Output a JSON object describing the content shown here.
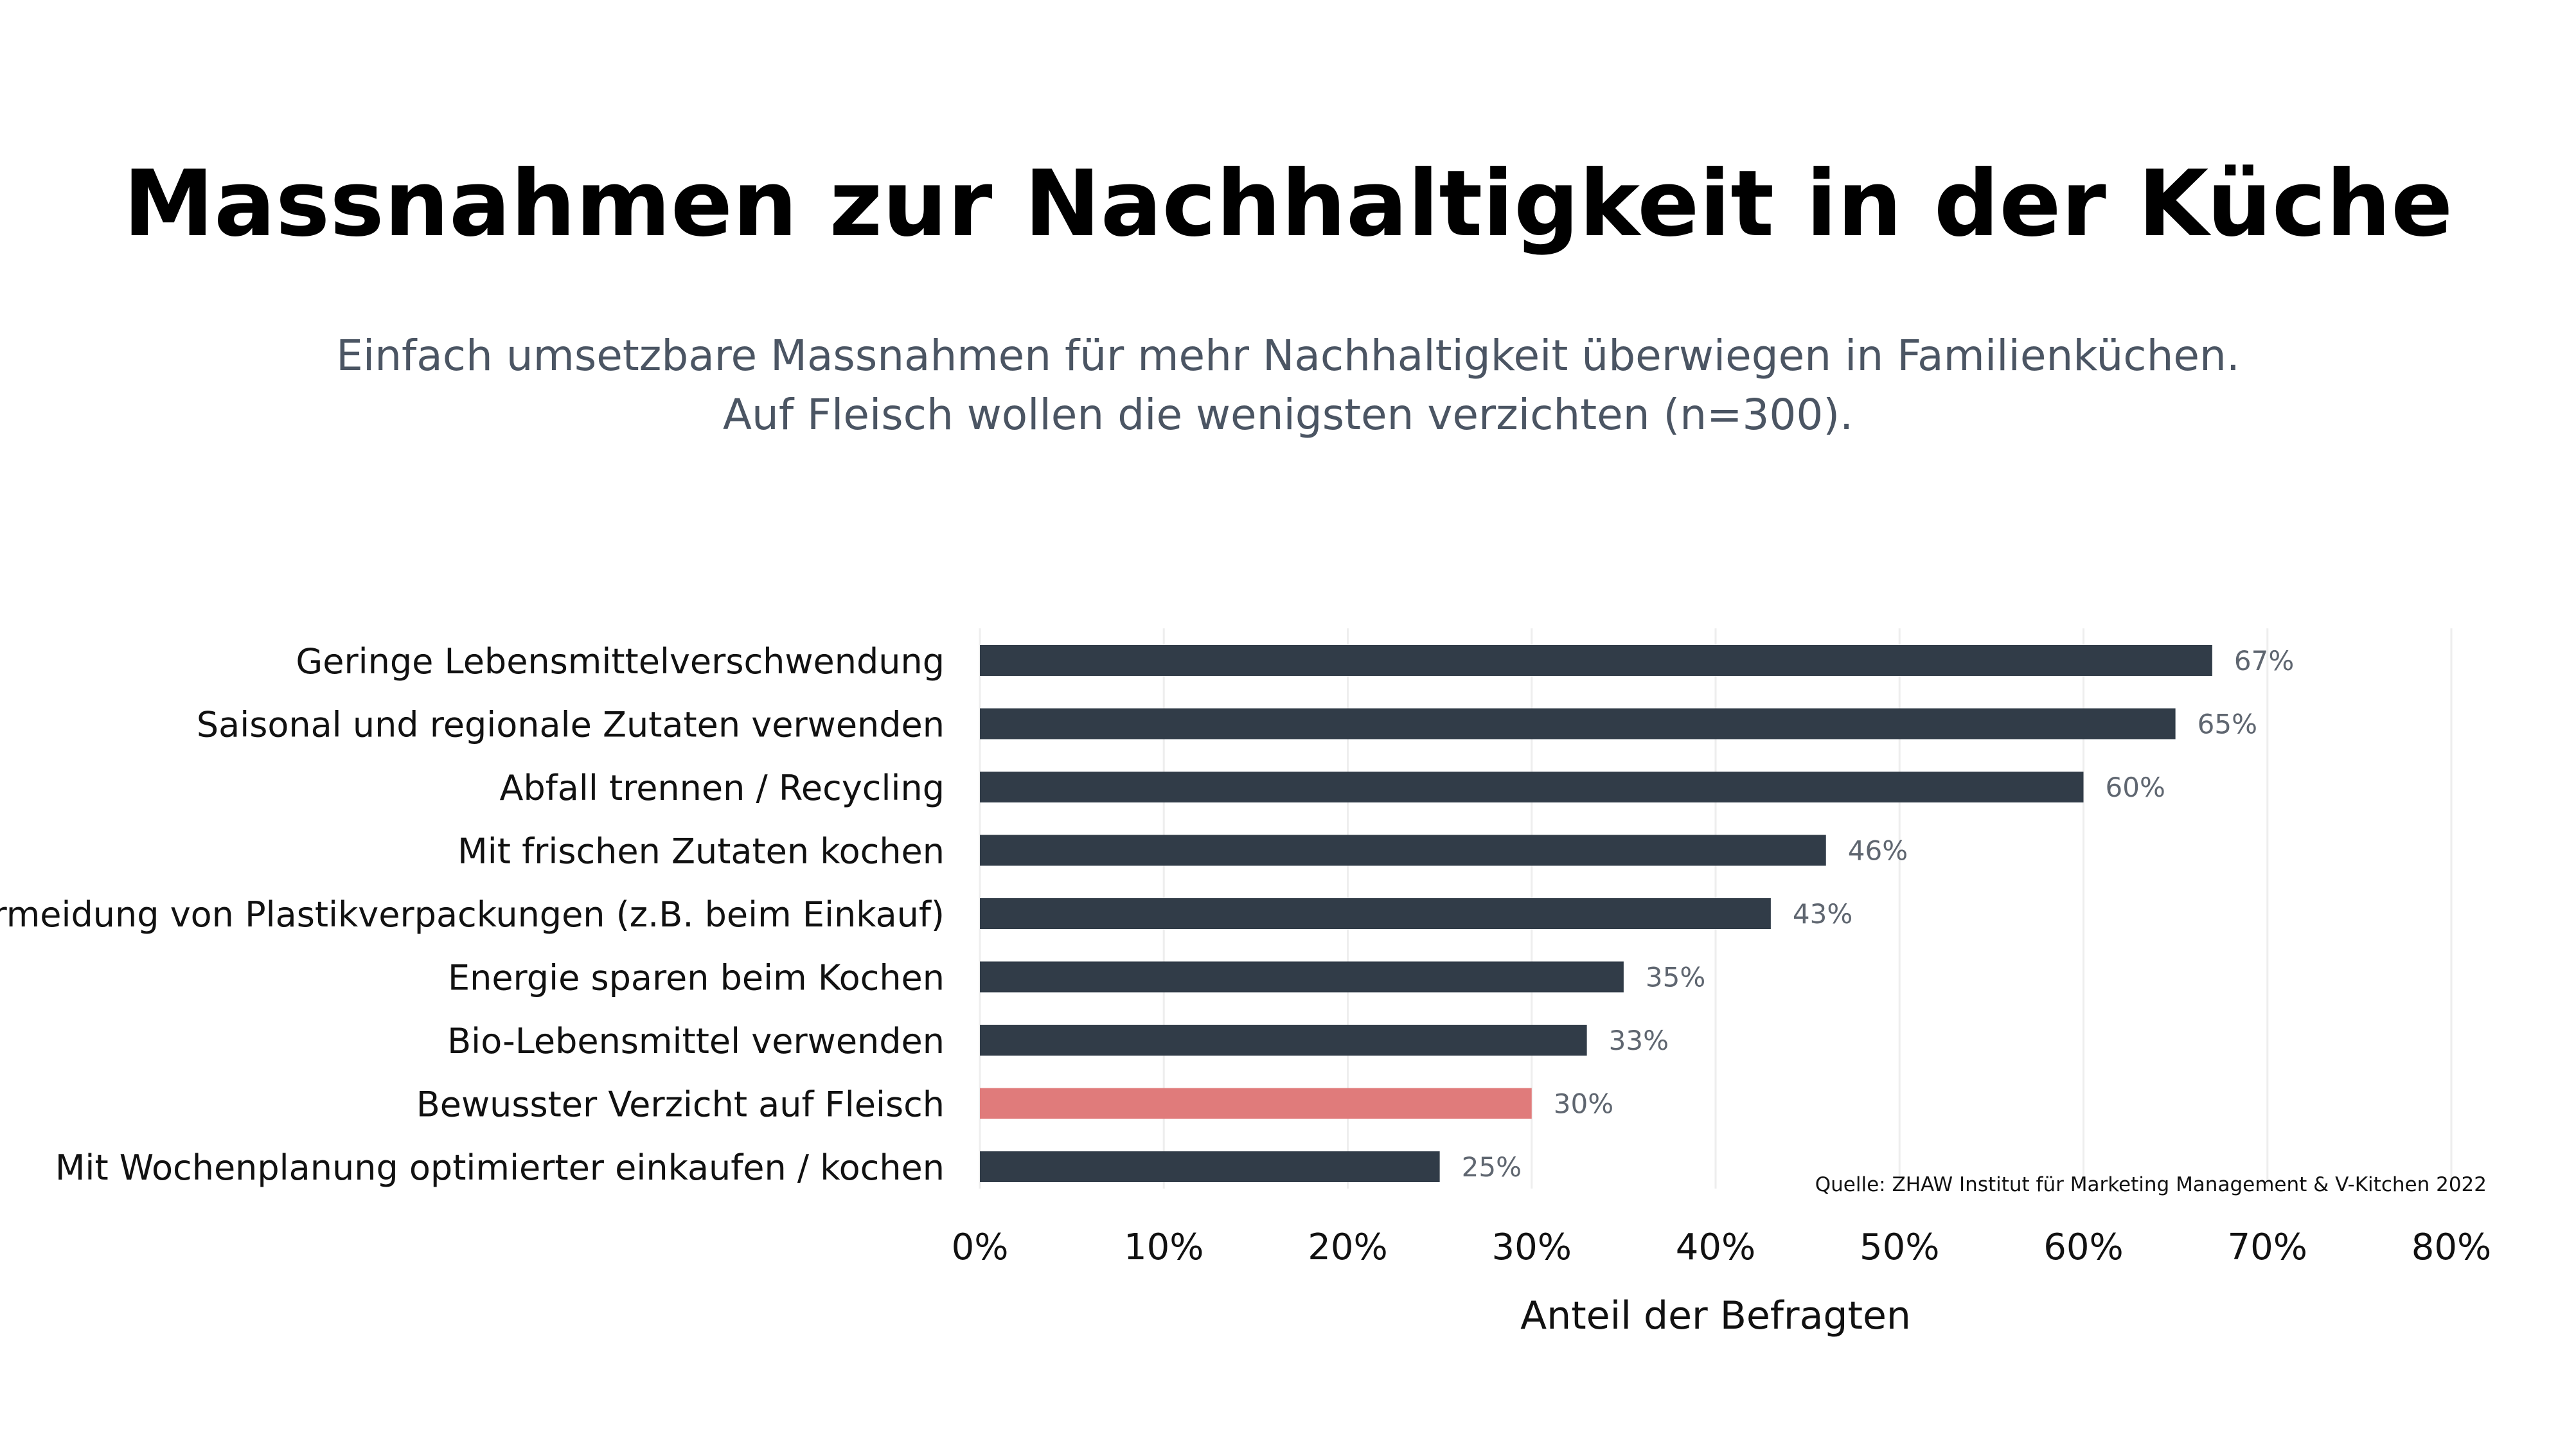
{
  "title": "Massnahmen zur Nachhaltigkeit in der Küche",
  "subtitle": [
    "Einfach umsetzbare Massnahmen für mehr Nachhaltigkeit überwiegen in Familienküchen.",
    "Auf Fleisch wollen die wenigsten verzichten (n=300)."
  ],
  "source": "Quelle: ZHAW Institut für Marketing Management & V-Kitchen 2022",
  "colors": {
    "bar": "#313c48",
    "highlight": "#e07b7b",
    "grid": "#eeeeee",
    "value_label": "#5f6670"
  },
  "chart_data": {
    "type": "bar",
    "orientation": "horizontal",
    "categories": [
      "Geringe Lebensmittelverschwendung",
      "Saisonal und regionale Zutaten verwenden",
      "Abfall trennen / Recycling",
      "Mit frischen Zutaten kochen",
      "Vermeidung von Plastikverpackungen (z.B. beim Einkauf)",
      "Energie sparen beim Kochen",
      "Bio-Lebensmittel verwenden",
      "Bewusster Verzicht auf Fleisch",
      "Mit Wochenplanung optimierter einkaufen / kochen"
    ],
    "values": [
      67,
      65,
      60,
      46,
      43,
      35,
      33,
      30,
      25
    ],
    "value_labels": [
      "67%",
      "65%",
      "60%",
      "46%",
      "43%",
      "35%",
      "33%",
      "30%",
      "25%"
    ],
    "highlight_category": "Bewusster Verzicht auf Fleisch",
    "xlabel": "Anteil der Befragten",
    "ylabel": "",
    "xlim": [
      0,
      80
    ],
    "xticks": [
      0,
      10,
      20,
      30,
      40,
      50,
      60,
      70,
      80
    ],
    "xtick_labels": [
      "0%",
      "10%",
      "20%",
      "30%",
      "40%",
      "50%",
      "60%",
      "70%",
      "80%"
    ],
    "grid": "vertical"
  }
}
